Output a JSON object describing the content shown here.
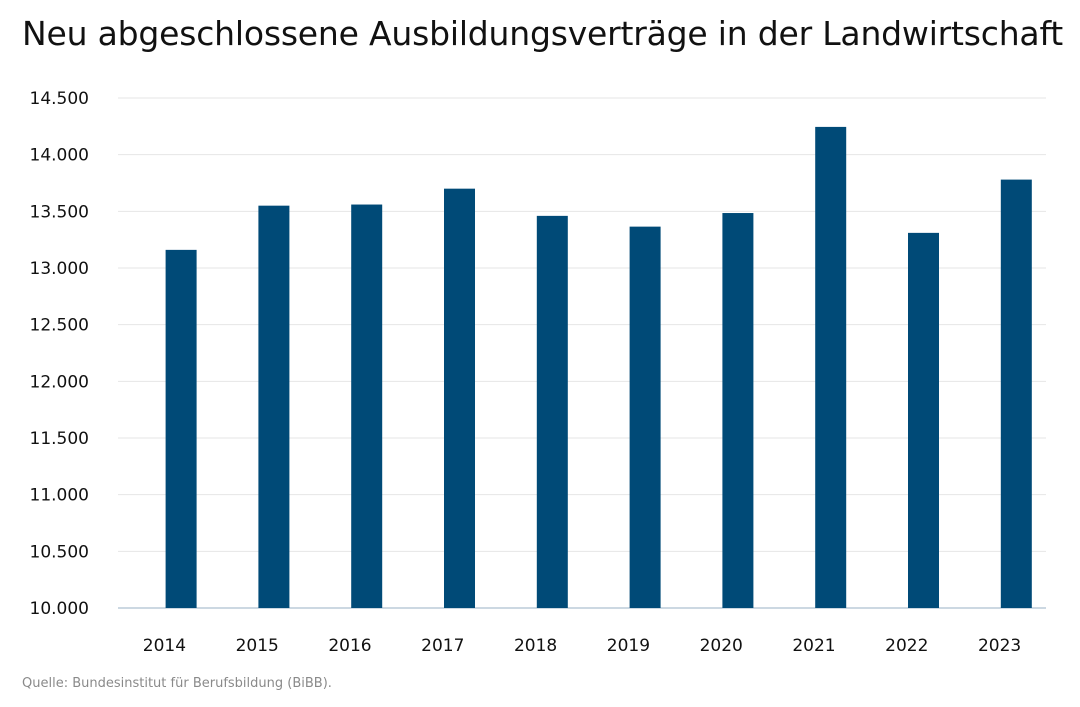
{
  "title": "Neu abgeschlossene Ausbildungsverträge in der Landwirtschaft",
  "source": "Quelle: Bundesinstitut für Berufsbildung (BiBB).",
  "chart_data": {
    "type": "bar",
    "title": "Neu abgeschlossene Ausbildungsverträge in der Landwirtschaft",
    "xlabel": "",
    "ylabel": "",
    "categories": [
      "2014",
      "2015",
      "2016",
      "2017",
      "2018",
      "2019",
      "2020",
      "2021",
      "2022",
      "2023"
    ],
    "series": [
      {
        "values": [
          13160,
          13550,
          13560,
          13700,
          13460,
          13365,
          13485,
          14245,
          13310,
          13780
        ]
      }
    ],
    "ylim": [
      10000,
      14500
    ],
    "yticks": [
      10000,
      10500,
      11000,
      11500,
      12000,
      12500,
      13000,
      13500,
      14000,
      14500
    ],
    "ytick_labels": [
      "10.000",
      "10.500",
      "11.000",
      "11.500",
      "12.000",
      "12.500",
      "13.000",
      "13.500",
      "14.000",
      "14.500"
    ],
    "grid": true,
    "legend": "none",
    "colors": {
      "bar": "#004a77",
      "grid": "#e6e6e6",
      "axis": "#9ab0c4"
    }
  }
}
